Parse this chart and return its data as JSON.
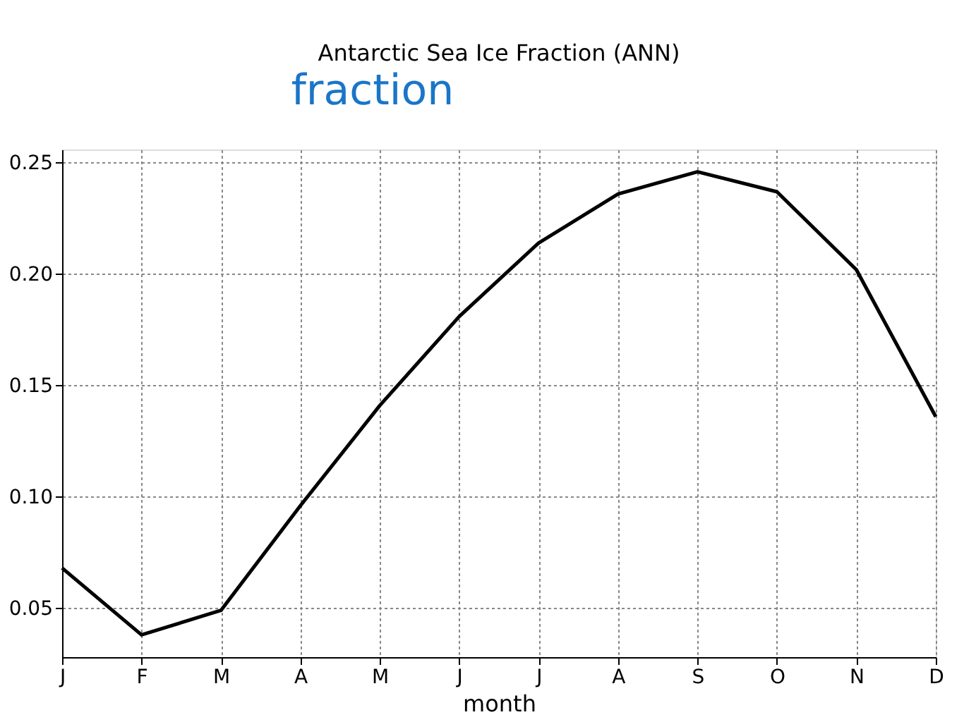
{
  "chart_data": {
    "type": "line",
    "title": "Antarctic Sea Ice Fraction (ANN)",
    "xlabel": "month",
    "annotations": [
      "fraction"
    ],
    "categories": [
      "J",
      "F",
      "M",
      "A",
      "M",
      "J",
      "J",
      "A",
      "S",
      "O",
      "N",
      "D"
    ],
    "series": [
      {
        "color": "#000000",
        "values": [
          0.068,
          0.038,
          0.049,
          0.096,
          0.141,
          0.181,
          0.214,
          0.236,
          0.246,
          0.237,
          0.202,
          0.136
        ]
      }
    ],
    "ylim": [
      0.028,
      0.256
    ],
    "yticks": [
      0.05,
      {
        "value": 0.1,
        "label": "0.10"
      },
      0.15,
      {
        "value": 0.2,
        "label": "0.20"
      },
      0.25
    ],
    "grid": true,
    "marker": "none",
    "line_style": "solid",
    "legend": false
  }
}
